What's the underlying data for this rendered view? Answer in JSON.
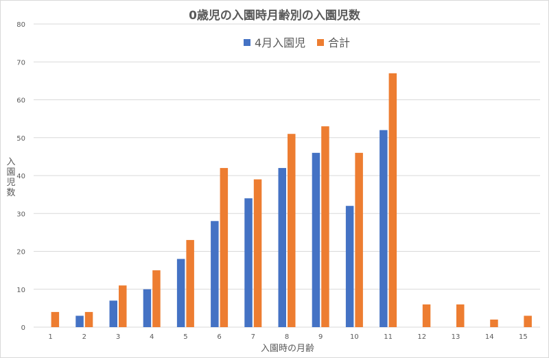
{
  "chart_data": {
    "type": "bar",
    "title": "0歳児の入園時月齢別の入園児数",
    "xlabel": "入園時の月齢",
    "ylabel": "入園児数",
    "ylim": [
      0,
      80
    ],
    "yticks": [
      "0",
      "10",
      "20",
      "30",
      "40",
      "50",
      "60",
      "70",
      "80"
    ],
    "categories": [
      "1",
      "2",
      "3",
      "4",
      "5",
      "6",
      "7",
      "8",
      "9",
      "10",
      "11",
      "12",
      "13",
      "14",
      "15"
    ],
    "legend_position": "top",
    "grid": true,
    "series": [
      {
        "name": "4月入園児",
        "color": "#4472c4",
        "values": [
          0,
          3,
          7,
          10,
          18,
          28,
          34,
          42,
          46,
          32,
          52,
          0,
          0,
          0,
          0
        ]
      },
      {
        "name": "合計",
        "color": "#ed7d31",
        "values": [
          4,
          4,
          11,
          15,
          23,
          42,
          39,
          51,
          53,
          46,
          67,
          6,
          6,
          2,
          3
        ]
      }
    ]
  }
}
